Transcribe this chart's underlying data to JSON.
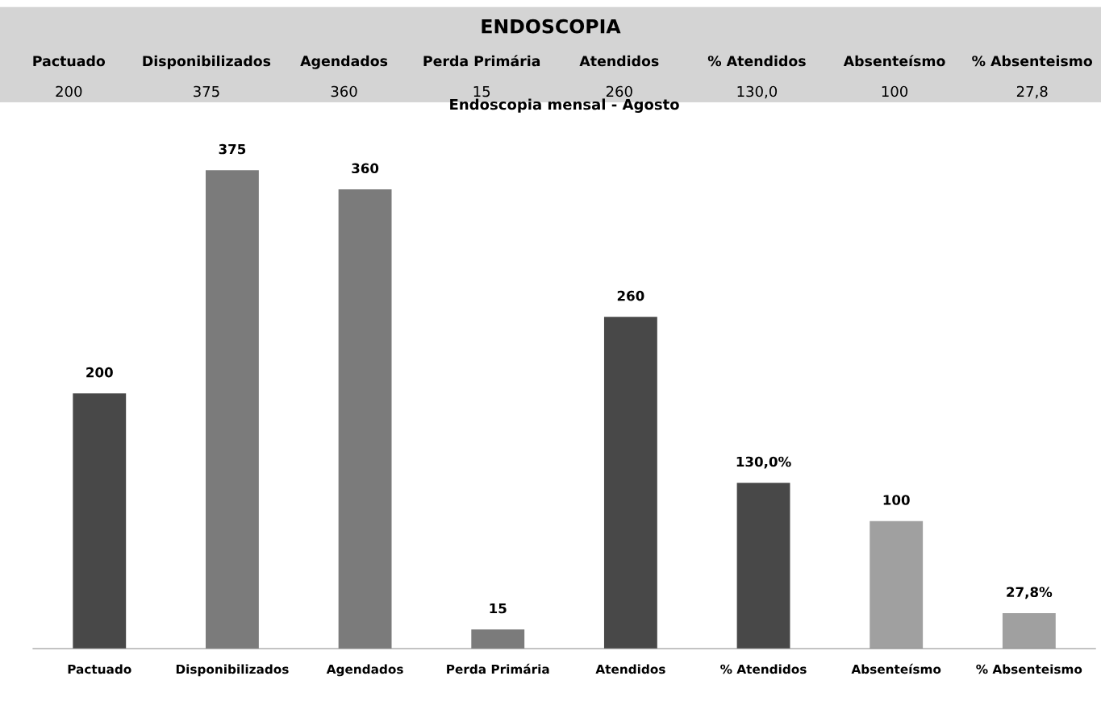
{
  "chart_data": [
    {
      "type": "other",
      "title": "ENDOSCOPIA",
      "categories": [
        "Pactuado",
        "Disponibilizados",
        "Agendados",
        "Perda Primária",
        "Atendidos",
        "% Atendidos",
        "Absenteísmo",
        "% Absenteismo"
      ],
      "value_labels": [
        "200",
        "375",
        "360",
        "15",
        "260",
        "130,0",
        "100",
        "27,8"
      ]
    },
    {
      "type": "bar",
      "title": "Endoscopia mensal - Agosto",
      "categories": [
        "Pactuado",
        "Disponibilizados",
        "Agendados",
        "Perda Primária",
        "Atendidos",
        "% Atendidos",
        "Absenteísmo",
        "% Absenteismo"
      ],
      "values": [
        200,
        375,
        360,
        15,
        260,
        130,
        100,
        27.8
      ],
      "colors": [
        "#484848",
        "#7b7b7b",
        "#7b7b7b",
        "#7b7b7b",
        "#484848",
        "#484848",
        "#a0a0a0",
        "#a0a0a0"
      ],
      "value_labels": [
        "200",
        "375",
        "360",
        "15",
        "260",
        "130,0%",
        "100",
        "27,8%"
      ],
      "grid": false,
      "legend": false
    }
  ]
}
